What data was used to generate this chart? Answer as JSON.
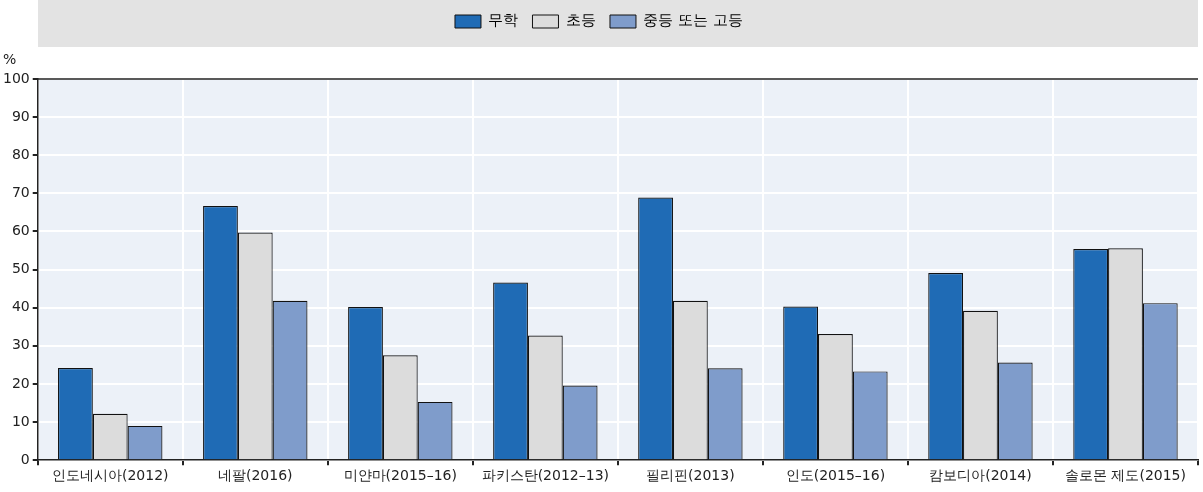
{
  "chart_data": {
    "type": "bar",
    "ylabel": "%",
    "categories": [
      "인도네시아(2012)",
      "네팔(2016)",
      "미얀마(2015–16)",
      "파키스탄(2012–13)",
      "필리핀(2013)",
      "인도(2015–16)",
      "캄보디아(2014)",
      "솔로몬 제도(2015)"
    ],
    "series": [
      {
        "name": "무학",
        "color": "#1f6bb5",
        "values": [
          24.2,
          66.7,
          40.2,
          46.6,
          68.9,
          40.3,
          49.1,
          55.4
        ]
      },
      {
        "name": "초등",
        "color": "#dcdcdc",
        "values": [
          12.2,
          59.7,
          27.5,
          32.7,
          41.8,
          33.1,
          39.2,
          55.6
        ]
      },
      {
        "name": "중등 또는 고등",
        "color": "#7f9ccb",
        "values": [
          9,
          41.8,
          15.3,
          19.6,
          24.1,
          23.3,
          25.6,
          41.2
        ]
      }
    ],
    "ylim": [
      0,
      100
    ],
    "yticks": [
      0,
      10,
      20,
      30,
      40,
      50,
      60,
      70,
      80,
      90,
      100
    ],
    "grid": true,
    "legend": "top"
  }
}
